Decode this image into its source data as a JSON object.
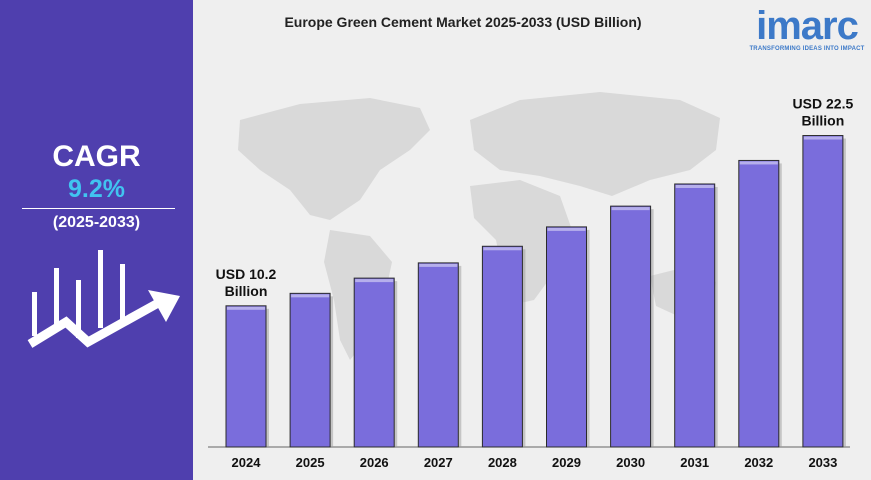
{
  "sidebar": {
    "cagr_title": "CAGR",
    "cagr_value": "9.2%",
    "cagr_period": "(2025-2033)",
    "accent_color": "#4f3fae",
    "value_color": "#41c4f0",
    "icon": "growth-chart-arrow-icon"
  },
  "logo": {
    "name": "imarc",
    "tagline": "TRANSFORMING IDEAS INTO IMPACT",
    "color": "#3c79c8"
  },
  "chart_data": {
    "type": "bar",
    "title": "Europe Green Cement Market 2025-2033 (USD Billion)",
    "xlabel": "",
    "ylabel": "",
    "categories": [
      "2024",
      "2025",
      "2026",
      "2027",
      "2028",
      "2029",
      "2030",
      "2031",
      "2032",
      "2033"
    ],
    "values": [
      10.2,
      11.1,
      12.2,
      13.3,
      14.5,
      15.9,
      17.4,
      19.0,
      20.7,
      22.5
    ],
    "ylim": [
      0,
      24.2
    ],
    "grid": false,
    "bar_color": "#7a6ddc",
    "annotations": [
      {
        "category": "2024",
        "lines": [
          "USD 10.2",
          "Billion"
        ]
      },
      {
        "category": "2033",
        "lines": [
          "USD 22.5",
          "Billion"
        ]
      }
    ]
  }
}
